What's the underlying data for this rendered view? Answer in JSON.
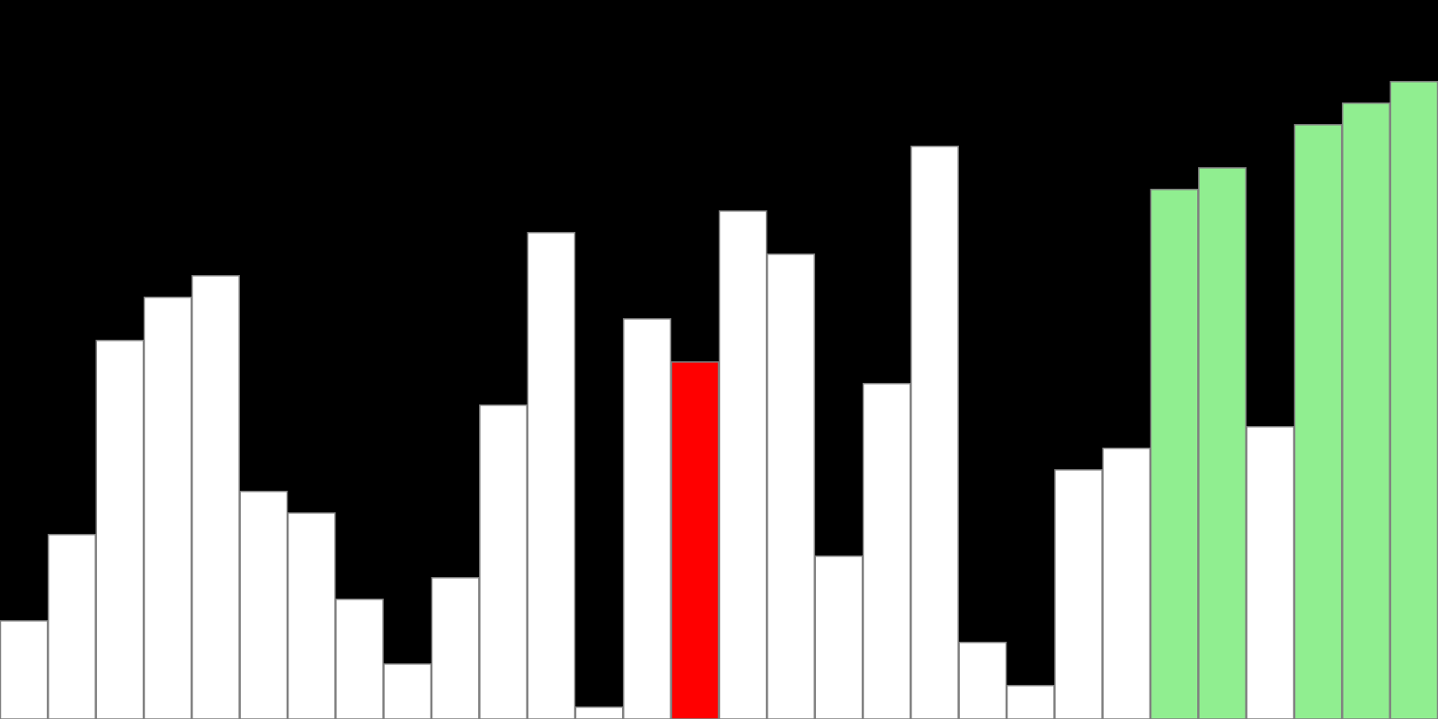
{
  "chart_data": {
    "type": "bar",
    "values": [
      5,
      9,
      18,
      20,
      21,
      11,
      10,
      6,
      3,
      7,
      15,
      23,
      1,
      19,
      17,
      24,
      22,
      8,
      16,
      27,
      4,
      2,
      12,
      13,
      25,
      26,
      14,
      28,
      29,
      30
    ],
    "colors": [
      "#ffffff",
      "#ffffff",
      "#ffffff",
      "#ffffff",
      "#ffffff",
      "#ffffff",
      "#ffffff",
      "#ffffff",
      "#ffffff",
      "#ffffff",
      "#ffffff",
      "#ffffff",
      "#ffffff",
      "#ffffff",
      "#ff0000",
      "#ffffff",
      "#ffffff",
      "#ffffff",
      "#ffffff",
      "#ffffff",
      "#ffffff",
      "#ffffff",
      "#ffffff",
      "#ffffff",
      "#90ee90",
      "#90ee90",
      "#ffffff",
      "#90ee90",
      "#90ee90",
      "#90ee90"
    ]
  }
}
